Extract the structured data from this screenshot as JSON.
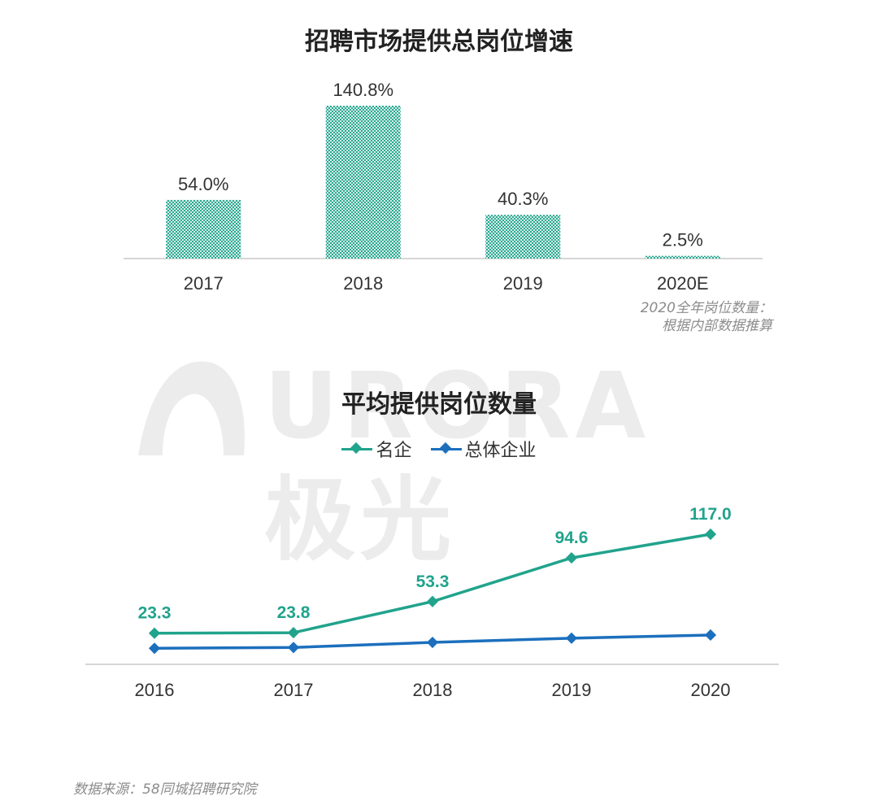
{
  "colors": {
    "bar": "#2aa891",
    "series_top": "#21a38c",
    "series_bottom": "#1c6fbd",
    "axis": "#c8c8c8",
    "text": "#333333",
    "note": "#8c8c8c",
    "watermark": "#ececec"
  },
  "watermark": {
    "text": "URORA 极光",
    "icon": "aurora-logo-icon"
  },
  "note": [
    "2020全年岗位数量：",
    "根据内部数据推算"
  ],
  "source": "数据来源：58同城招聘研究院",
  "chart_data": [
    {
      "type": "bar",
      "title": "招聘市场提供总岗位增速",
      "categories": [
        "2017",
        "2018",
        "2019",
        "2020E"
      ],
      "values": [
        54.0,
        140.8,
        40.3,
        2.5
      ],
      "value_labels": [
        "54.0%",
        "140.8%",
        "40.3%",
        "2.5%"
      ],
      "ylim": [
        0,
        140.8
      ],
      "grid": false,
      "legend": "none"
    },
    {
      "type": "line",
      "title": "平均提供岗位数量",
      "x": [
        "2016",
        "2017",
        "2018",
        "2019",
        "2020"
      ],
      "series": [
        {
          "name": "名企",
          "values": [
            23.3,
            23.8,
            53.3,
            94.6,
            117.0
          ],
          "labels": [
            "23.3",
            "23.8",
            "53.3",
            "94.6",
            "117.0"
          ]
        },
        {
          "name": "总体企业",
          "values": [
            9,
            9.8,
            14.6,
            18.6,
            21.6
          ],
          "labels": []
        }
      ],
      "ylim": [
        0,
        117.0
      ],
      "grid": false,
      "legend": "top-center"
    }
  ]
}
